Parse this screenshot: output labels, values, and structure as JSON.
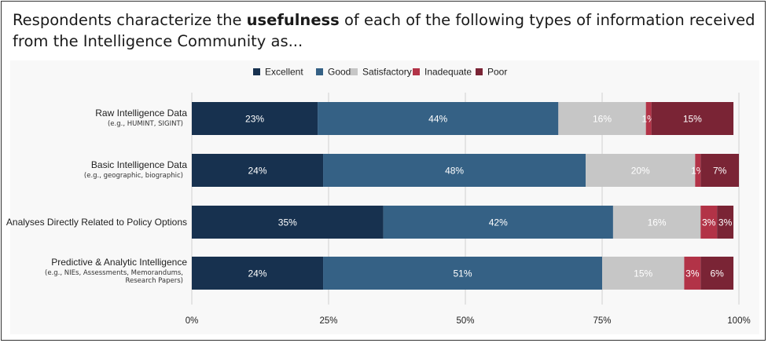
{
  "title": {
    "prefix": "Respondents characterize the ",
    "emphasis": "usefulness",
    "line1_rest": " of each of the following types of information received",
    "line2": "from the Intelligence Community as..."
  },
  "colors": {
    "Excellent": "#17314f",
    "Good": "#356185",
    "Satisfactory": "#c6c6c6",
    "Inadequate": "#b23347",
    "Poor": "#7a2435"
  },
  "chart_data": {
    "type": "bar",
    "orientation": "horizontal",
    "stacked": true,
    "legend_position": "top",
    "grid": true,
    "xlim": [
      0,
      100
    ],
    "xticks": [
      "0%",
      "25%",
      "50%",
      "75%",
      "100%"
    ],
    "categories": [
      {
        "label": "Raw Intelligence Data",
        "sublabel": [
          "(e.g., HUMINT, SIGINT)"
        ]
      },
      {
        "label": "Basic Intelligence Data",
        "sublabel": [
          "(e.g., geographic, biographic)"
        ]
      },
      {
        "label": "Analyses Directly Related to Policy Options",
        "sublabel": []
      },
      {
        "label": "Predictive & Analytic Intelligence",
        "sublabel": [
          "(e.g., NIEs, Assessments, Memorandums,",
          "Research Papers)"
        ]
      }
    ],
    "series": [
      {
        "name": "Excellent",
        "values": [
          23,
          24,
          35,
          24
        ],
        "labels": [
          "23%",
          "24%",
          "35%",
          "24%"
        ]
      },
      {
        "name": "Good",
        "values": [
          44,
          48,
          42,
          51
        ],
        "labels": [
          "44%",
          "48%",
          "42%",
          "51%"
        ]
      },
      {
        "name": "Satisfactory",
        "values": [
          16,
          20,
          16,
          15
        ],
        "labels": [
          "16%",
          "20%",
          "16%",
          "15%"
        ]
      },
      {
        "name": "Inadequate",
        "values": [
          1,
          1,
          3,
          3
        ],
        "labels": [
          "1%",
          "1%",
          "3%",
          "3%"
        ]
      },
      {
        "name": "Poor",
        "values": [
          15,
          7,
          3,
          6
        ],
        "labels": [
          "15%",
          "7%",
          "3%",
          "6%"
        ]
      }
    ]
  }
}
